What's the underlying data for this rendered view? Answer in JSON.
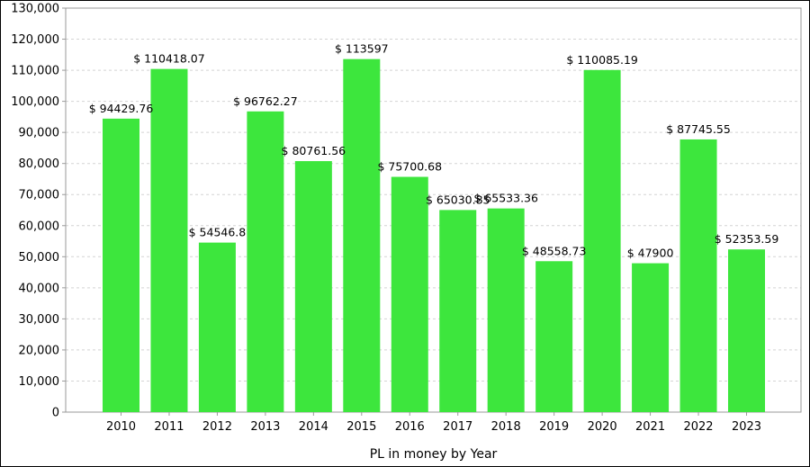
{
  "chart_data": {
    "type": "bar",
    "title": "",
    "xlabel": "PL in money by Year",
    "ylabel": "",
    "ylim": [
      0,
      130000
    ],
    "ytick_step": 10000,
    "grid": "horizontal dashed",
    "legend": "none",
    "bar_color": "#3de63d",
    "categories": [
      "2010",
      "2011",
      "2012",
      "2013",
      "2014",
      "2015",
      "2016",
      "2017",
      "2018",
      "2019",
      "2020",
      "2021",
      "2022",
      "2023"
    ],
    "values": [
      94429.76,
      110418.07,
      54546.8,
      96762.27,
      80761.56,
      113597,
      75700.68,
      65030.85,
      65533.36,
      48558.73,
      110085.19,
      47900,
      87745.55,
      52353.59
    ],
    "data_labels": [
      "$ 94429.76",
      "$ 110418.07",
      "$ 54546.8",
      "$ 96762.27",
      "$ 80761.56",
      "$ 113597",
      "$ 75700.68",
      "$ 65030.85",
      "$ 65533.36",
      "$ 48558.73",
      "$ 110085.19",
      "$ 47900",
      "$ 87745.55",
      "$ 52353.59"
    ]
  }
}
